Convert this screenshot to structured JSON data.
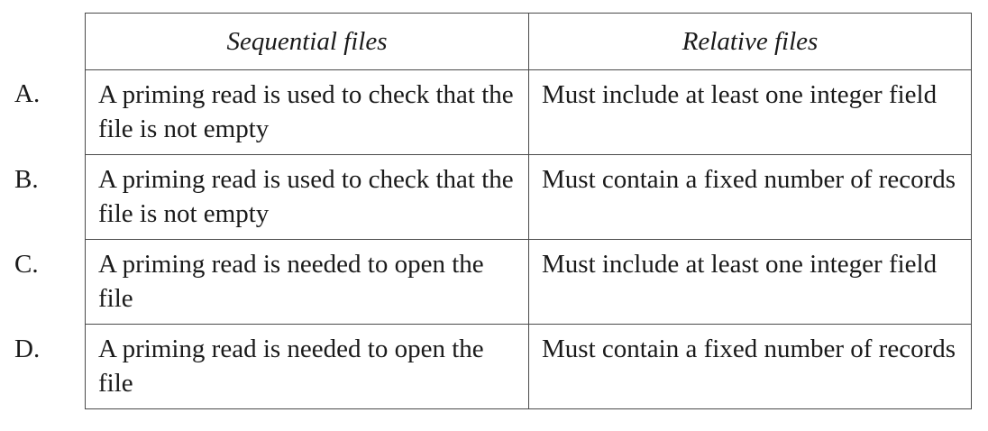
{
  "table": {
    "headers": [
      "Sequential files",
      "Relative files"
    ],
    "rows": [
      {
        "label": "A.",
        "sequential": "A priming read is used to check that the file is not empty",
        "relative": "Must include at least one integer field"
      },
      {
        "label": "B.",
        "sequential": "A priming read is used to check that the file is not empty",
        "relative": "Must contain a fixed number of records"
      },
      {
        "label": "C.",
        "sequential": "A priming read is needed to open the file",
        "relative": "Must include at least one integer field"
      },
      {
        "label": "D.",
        "sequential": "A priming read is needed to open the file",
        "relative": "Must contain a fixed number of records"
      }
    ]
  }
}
